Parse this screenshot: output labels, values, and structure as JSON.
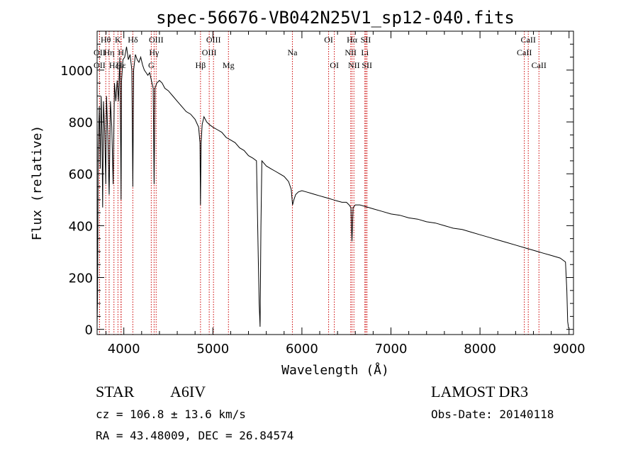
{
  "chart_data": {
    "type": "line",
    "title": "spec-56676-VB042N25V1_sp12-040.fits",
    "xlabel": "Wavelength (Å)",
    "ylabel": "Flux (relative)",
    "xlim": [
      3700,
      9050
    ],
    "ylim": [
      -20,
      1150
    ],
    "x_ticks": [
      4000,
      5000,
      6000,
      7000,
      8000,
      9000
    ],
    "x_tick_labels": [
      "4000",
      "5000",
      "6000",
      "7000",
      "8000",
      "9000"
    ],
    "y_ticks": [
      0,
      200,
      400,
      600,
      800,
      1000
    ],
    "y_tick_labels": [
      "0",
      "200",
      "400",
      "600",
      "800",
      "1000"
    ],
    "line_color": "#000000",
    "marker_color": "#cc0000",
    "series": [
      {
        "name": "flux",
        "points": [
          [
            3700,
            20
          ],
          [
            3705,
            120
          ],
          [
            3712,
            700
          ],
          [
            3725,
            860
          ],
          [
            3735,
            620
          ],
          [
            3745,
            900
          ],
          [
            3755,
            740
          ],
          [
            3762,
            470
          ],
          [
            3772,
            880
          ],
          [
            3785,
            760
          ],
          [
            3797,
            560
          ],
          [
            3805,
            900
          ],
          [
            3820,
            750
          ],
          [
            3835,
            520
          ],
          [
            3850,
            880
          ],
          [
            3865,
            780
          ],
          [
            3880,
            560
          ],
          [
            3895,
            950
          ],
          [
            3910,
            880
          ],
          [
            3925,
            960
          ],
          [
            3940,
            880
          ],
          [
            3955,
            1050
          ],
          [
            3965,
            700
          ],
          [
            3969,
            500
          ],
          [
            3975,
            960
          ],
          [
            3990,
            1040
          ],
          [
            4010,
            1050
          ],
          [
            4030,
            1090
          ],
          [
            4050,
            1040
          ],
          [
            4070,
            1060
          ],
          [
            4090,
            1000
          ],
          [
            4101,
            550
          ],
          [
            4110,
            1000
          ],
          [
            4130,
            1060
          ],
          [
            4150,
            1040
          ],
          [
            4170,
            1030
          ],
          [
            4190,
            1050
          ],
          [
            4210,
            1020
          ],
          [
            4230,
            1000
          ],
          [
            4250,
            990
          ],
          [
            4270,
            980
          ],
          [
            4290,
            990
          ],
          [
            4310,
            960
          ],
          [
            4330,
            930
          ],
          [
            4340,
            560
          ],
          [
            4350,
            930
          ],
          [
            4370,
            950
          ],
          [
            4400,
            960
          ],
          [
            4430,
            950
          ],
          [
            4460,
            930
          ],
          [
            4500,
            920
          ],
          [
            4550,
            900
          ],
          [
            4600,
            880
          ],
          [
            4650,
            860
          ],
          [
            4700,
            840
          ],
          [
            4750,
            830
          ],
          [
            4800,
            810
          ],
          [
            4840,
            780
          ],
          [
            4855,
            720
          ],
          [
            4861,
            480
          ],
          [
            4868,
            720
          ],
          [
            4880,
            790
          ],
          [
            4900,
            820
          ],
          [
            4930,
            800
          ],
          [
            4960,
            790
          ],
          [
            5000,
            780
          ],
          [
            5050,
            770
          ],
          [
            5100,
            760
          ],
          [
            5150,
            740
          ],
          [
            5200,
            730
          ],
          [
            5250,
            720
          ],
          [
            5300,
            700
          ],
          [
            5350,
            690
          ],
          [
            5400,
            670
          ],
          [
            5450,
            660
          ],
          [
            5490,
            650
          ],
          [
            5500,
            460
          ],
          [
            5510,
            280
          ],
          [
            5520,
            100
          ],
          [
            5530,
            10
          ],
          [
            5540,
            400
          ],
          [
            5550,
            650
          ],
          [
            5600,
            630
          ],
          [
            5650,
            620
          ],
          [
            5700,
            610
          ],
          [
            5750,
            600
          ],
          [
            5800,
            590
          ],
          [
            5850,
            570
          ],
          [
            5880,
            540
          ],
          [
            5895,
            480
          ],
          [
            5910,
            500
          ],
          [
            5930,
            520
          ],
          [
            5960,
            530
          ],
          [
            6000,
            535
          ],
          [
            6050,
            530
          ],
          [
            6100,
            525
          ],
          [
            6150,
            520
          ],
          [
            6200,
            515
          ],
          [
            6250,
            510
          ],
          [
            6300,
            505
          ],
          [
            6350,
            500
          ],
          [
            6400,
            495
          ],
          [
            6450,
            490
          ],
          [
            6500,
            490
          ],
          [
            6530,
            480
          ],
          [
            6550,
            470
          ],
          [
            6562,
            340
          ],
          [
            6575,
            470
          ],
          [
            6600,
            480
          ],
          [
            6650,
            480
          ],
          [
            6700,
            475
          ],
          [
            6800,
            465
          ],
          [
            6900,
            455
          ],
          [
            7000,
            445
          ],
          [
            7100,
            440
          ],
          [
            7200,
            430
          ],
          [
            7300,
            425
          ],
          [
            7400,
            415
          ],
          [
            7500,
            410
          ],
          [
            7600,
            400
          ],
          [
            7700,
            390
          ],
          [
            7800,
            385
          ],
          [
            7900,
            375
          ],
          [
            8000,
            365
          ],
          [
            8100,
            355
          ],
          [
            8200,
            345
          ],
          [
            8300,
            335
          ],
          [
            8400,
            325
          ],
          [
            8500,
            315
          ],
          [
            8600,
            305
          ],
          [
            8700,
            295
          ],
          [
            8800,
            285
          ],
          [
            8900,
            275
          ],
          [
            8960,
            260
          ],
          [
            8975,
            150
          ],
          [
            8985,
            30
          ],
          [
            8995,
            5
          ]
        ]
      }
    ],
    "lines": [
      {
        "name": "OII",
        "wl": 3727,
        "row": 2
      },
      {
        "name": "Hθ",
        "wl": 3797,
        "row": 1
      },
      {
        "name": "OII",
        "wl": 3727,
        "row": 3
      },
      {
        "name": "Hη",
        "wl": 3835,
        "row": 2
      },
      {
        "name": "Hζ",
        "wl": 3889,
        "row": 3
      },
      {
        "name": "K",
        "wl": 3934,
        "row": 1
      },
      {
        "name": "H",
        "wl": 3968,
        "row": 2
      },
      {
        "name": "Hε",
        "wl": 3970,
        "row": 3
      },
      {
        "name": "Hδ",
        "wl": 4101,
        "row": 1
      },
      {
        "name": "OIII",
        "wl": 4363,
        "row": 1
      },
      {
        "name": "Hγ",
        "wl": 4340,
        "row": 2
      },
      {
        "name": "G",
        "wl": 4308,
        "row": 3
      },
      {
        "name": "Hβ",
        "wl": 4861,
        "row": 3
      },
      {
        "name": "OIII",
        "wl": 5007,
        "row": 1
      },
      {
        "name": "OIII",
        "wl": 4959,
        "row": 2
      },
      {
        "name": "Mg",
        "wl": 5175,
        "row": 3
      },
      {
        "name": "Na",
        "wl": 5893,
        "row": 2
      },
      {
        "name": "OI",
        "wl": 6300,
        "row": 1
      },
      {
        "name": "OI",
        "wl": 6364,
        "row": 3
      },
      {
        "name": "Hα",
        "wl": 6563,
        "row": 1
      },
      {
        "name": "NII",
        "wl": 6548,
        "row": 2
      },
      {
        "name": "NII",
        "wl": 6584,
        "row": 3
      },
      {
        "name": "SII",
        "wl": 6717,
        "row": 1
      },
      {
        "name": "Li",
        "wl": 6707,
        "row": 2
      },
      {
        "name": "SII",
        "wl": 6731,
        "row": 3
      },
      {
        "name": "CaII",
        "wl": 8542,
        "row": 1
      },
      {
        "name": "CaII",
        "wl": 8498,
        "row": 2
      },
      {
        "name": "CaII",
        "wl": 8662,
        "row": 3
      }
    ]
  },
  "info": {
    "object_type": "STAR",
    "subclass": "A6IV",
    "survey": "LAMOST DR3",
    "cz": "cz = 106.8 ± 13.6 km/s",
    "obs_date": "Obs-Date: 20140118",
    "coords": "RA =  43.48009, DEC =  26.84574"
  }
}
